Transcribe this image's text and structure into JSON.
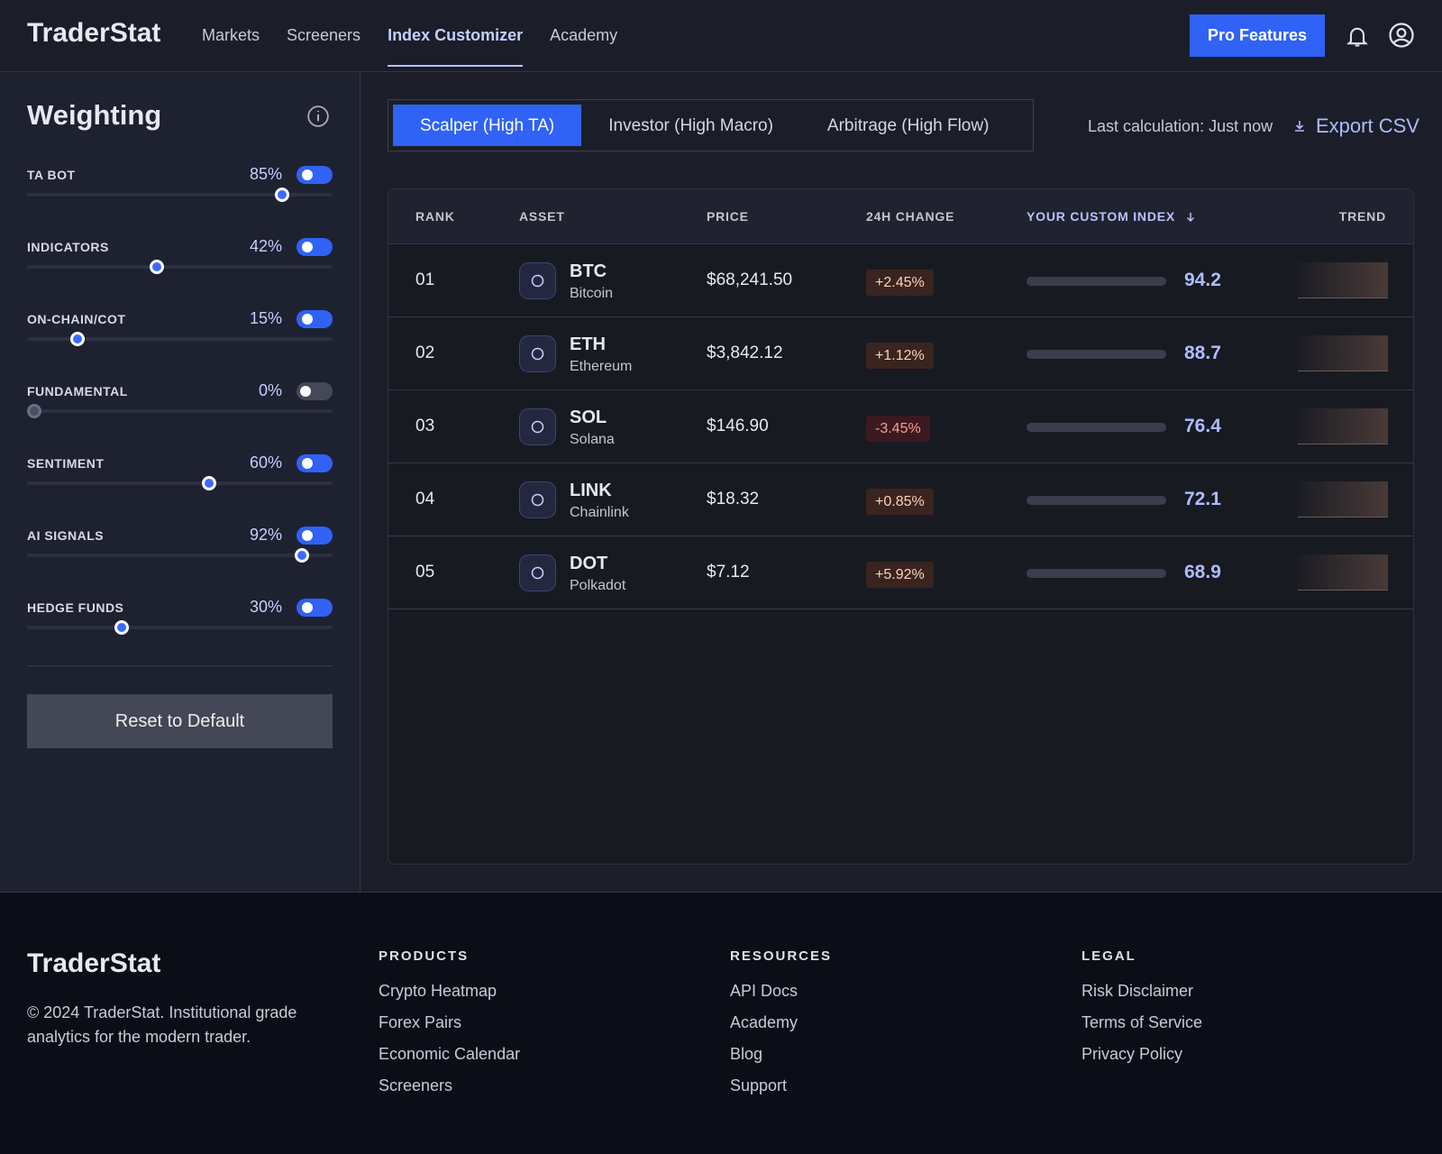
{
  "header": {
    "brand": "TraderStat",
    "nav": [
      "Markets",
      "Screeners",
      "Index Customizer",
      "Academy"
    ],
    "active_nav": 2,
    "cta": "Pro Features"
  },
  "sidebar": {
    "title": "Weighting",
    "weight_range": [
      0,
      100
    ],
    "weights": [
      {
        "name": "TA BOT",
        "value": 85,
        "label": "85%",
        "enabled": true
      },
      {
        "name": "INDICATORS",
        "value": 42,
        "label": "42%",
        "enabled": true
      },
      {
        "name": "ON-CHAIN/COT",
        "value": 15,
        "label": "15%",
        "enabled": true
      },
      {
        "name": "FUNDAMENTAL",
        "value": 0,
        "label": "0%",
        "enabled": false
      },
      {
        "name": "SENTIMENT",
        "value": 60,
        "label": "60%",
        "enabled": true
      },
      {
        "name": "AI SIGNALS",
        "value": 92,
        "label": "92%",
        "enabled": true
      },
      {
        "name": "HEDGE FUNDS",
        "value": 30,
        "label": "30%",
        "enabled": true
      }
    ],
    "reset": "Reset to Default"
  },
  "presets": {
    "tabs": [
      "Scalper (High TA)",
      "Investor (High Macro)",
      "Arbitrage (High Flow)"
    ],
    "active": 0
  },
  "status": "Last calculation: Just now",
  "export": "Export CSV",
  "table": {
    "columns": [
      "RANK",
      "ASSET",
      "PRICE",
      "24H CHANGE",
      "YOUR CUSTOM INDEX",
      "TREND"
    ],
    "index_range": [
      0,
      100
    ],
    "rows": [
      {
        "rank": "01",
        "symbol": "BTC",
        "name": "Bitcoin",
        "price": "$68,241.50",
        "change": "+2.45%",
        "index": 94.2
      },
      {
        "rank": "02",
        "symbol": "ETH",
        "name": "Ethereum",
        "price": "$3,842.12",
        "change": "+1.12%",
        "index": 88.7
      },
      {
        "rank": "03",
        "symbol": "SOL",
        "name": "Solana",
        "price": "$146.90",
        "change": "-3.45%",
        "index": 76.4
      },
      {
        "rank": "04",
        "symbol": "LINK",
        "name": "Chainlink",
        "price": "$18.32",
        "change": "+0.85%",
        "index": 72.1
      },
      {
        "rank": "05",
        "symbol": "DOT",
        "name": "Polkadot",
        "price": "$7.12",
        "change": "+5.92%",
        "index": 68.9
      }
    ]
  },
  "footer": {
    "brand": "TraderStat",
    "copyright": "© 2024 TraderStat. Institutional grade analytics for the modern trader.",
    "columns": [
      {
        "title": "PRODUCTS",
        "links": [
          "Crypto Heatmap",
          "Forex Pairs",
          "Economic Calendar",
          "Screeners"
        ]
      },
      {
        "title": "RESOURCES",
        "links": [
          "API Docs",
          "Academy",
          "Blog",
          "Support"
        ]
      },
      {
        "title": "LEGAL",
        "links": [
          "Risk Disclaimer",
          "Terms of Service",
          "Privacy Policy"
        ]
      }
    ]
  }
}
